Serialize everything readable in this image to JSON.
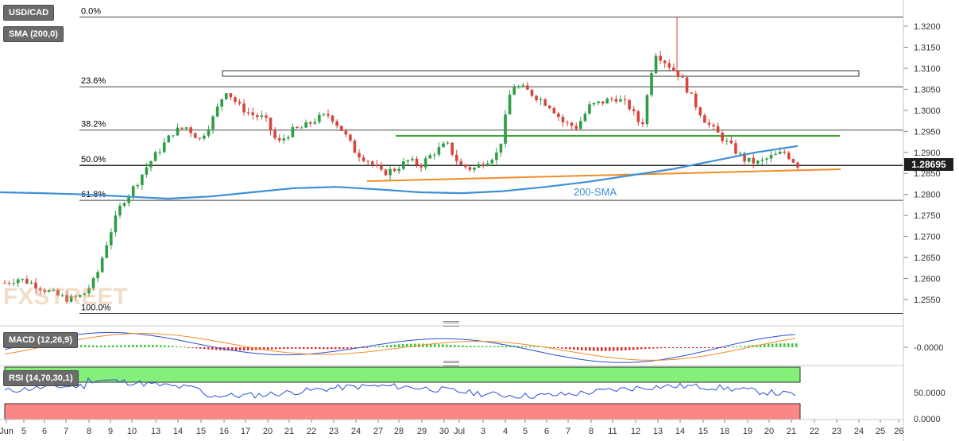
{
  "panels": {
    "price_label": "USD/CAD",
    "sma_label": "SMA (200,0)",
    "macd_label": "MACD (12,26,9)",
    "rsi_label": "RSI (14,70,30,1)",
    "current_price": "1.28695",
    "sma_annotation": "200-SMA",
    "watermark": "FXSTREET"
  },
  "chart_data": {
    "type": "candlestick",
    "title": "USD/CAD",
    "price_axis": {
      "ticks": [
        "1.3200",
        "1.3150",
        "1.3100",
        "1.3050",
        "1.3000",
        "1.2950",
        "1.2900",
        "1.2850",
        "1.2800",
        "1.2750",
        "1.2700",
        "1.2650",
        "1.2600",
        "1.2550"
      ],
      "ylim": [
        1.252,
        1.3225
      ]
    },
    "fibonacci": [
      {
        "label": "0.0%",
        "value": 1.3222
      },
      {
        "label": "23.6%",
        "value": 1.3056
      },
      {
        "label": "38.2%",
        "value": 1.2953
      },
      {
        "label": "50.0%",
        "value": 1.2869
      },
      {
        "label": "61.8%",
        "value": 1.2786
      },
      {
        "label": "100.0%",
        "value": 1.2517
      }
    ],
    "x_ticks": [
      "Jun",
      "5",
      "6",
      "7",
      "8",
      "9",
      "10",
      "13",
      "14",
      "15",
      "16",
      "17",
      "20",
      "21",
      "22",
      "23",
      "24",
      "27",
      "28",
      "29",
      "30",
      "Jul",
      "3",
      "4",
      "5",
      "6",
      "7",
      "8",
      "11",
      "12",
      "13",
      "14",
      "15",
      "18",
      "19",
      "20",
      "21",
      "22",
      "23",
      "24",
      "25",
      "26"
    ],
    "close_path": [
      1.259,
      1.26,
      1.259,
      1.2575,
      1.256,
      1.255,
      1.256,
      1.26,
      1.27,
      1.278,
      1.282,
      1.287,
      1.291,
      1.295,
      1.296,
      1.293,
      1.298,
      1.305,
      1.301,
      1.299,
      1.298,
      1.292,
      1.295,
      1.296,
      1.298,
      1.299,
      1.295,
      1.29,
      1.288,
      1.285,
      1.286,
      1.288,
      1.287,
      1.29,
      1.292,
      1.287,
      1.286,
      1.288,
      1.29,
      1.306,
      1.305,
      1.303,
      1.301,
      1.297,
      1.296,
      1.301,
      1.302,
      1.303,
      1.301,
      1.296,
      1.314,
      1.311,
      1.308,
      1.302,
      1.297,
      1.294,
      1.291,
      1.288,
      1.2875,
      1.289,
      1.29,
      1.287
    ],
    "sma200": [
      1.2805,
      1.2803,
      1.28,
      1.2795,
      1.279,
      1.2795,
      1.2805,
      1.2815,
      1.2818,
      1.2812,
      1.2805,
      1.2803,
      1.2808,
      1.2818,
      1.283,
      1.2845,
      1.286,
      1.288,
      1.29,
      1.2915
    ],
    "resistance_zone": {
      "from": 1.308,
      "to": 1.3092
    },
    "green_line": 1.2937,
    "orange_support": {
      "start": 1.2832,
      "end": 1.2858
    },
    "macd": {
      "ticks": [
        "-0.0000"
      ]
    },
    "rsi": {
      "ticks": [
        "50.0000",
        "0.0000"
      ],
      "overbought": 70,
      "oversold": 30
    }
  }
}
